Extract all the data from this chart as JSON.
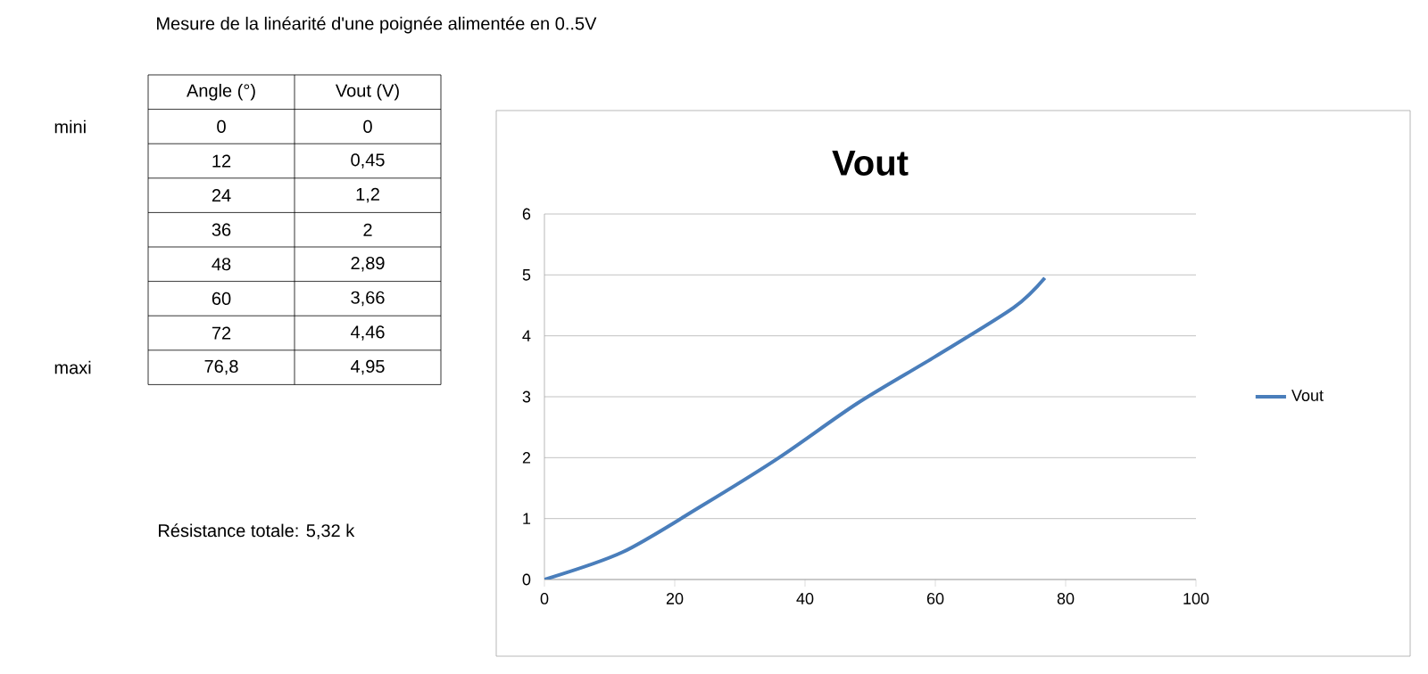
{
  "chart_data": {
    "type": "line",
    "title": "Vout",
    "x": [
      0,
      12,
      24,
      36,
      48,
      60,
      72,
      76.8
    ],
    "series": [
      {
        "name": "Vout",
        "color": "#4a7ebb",
        "values": [
          0,
          0.45,
          1.2,
          2,
          2.89,
          3.66,
          4.46,
          4.95
        ]
      }
    ],
    "xlim": [
      0,
      100
    ],
    "xticks": [
      0,
      20,
      40,
      60,
      80,
      100
    ],
    "ylim": [
      0,
      6
    ],
    "yticks": [
      0,
      1,
      2,
      3,
      4,
      5,
      6
    ],
    "grid": "y",
    "legend": "right",
    "line_style": "solid",
    "annotations": [
      "Mesure de la linéarité d'une poignée alimentée en 0..5V",
      "Angle (°)",
      "Vout (V)",
      "mini",
      "maxi",
      "Résistance totale: 5,32 k",
      "0",
      "0",
      "12",
      "0,45",
      "24",
      "1,2",
      "36",
      "2",
      "48",
      "2,89",
      "60",
      "3,66",
      "72",
      "4,46",
      "76,8",
      "4,95"
    ]
  }
}
